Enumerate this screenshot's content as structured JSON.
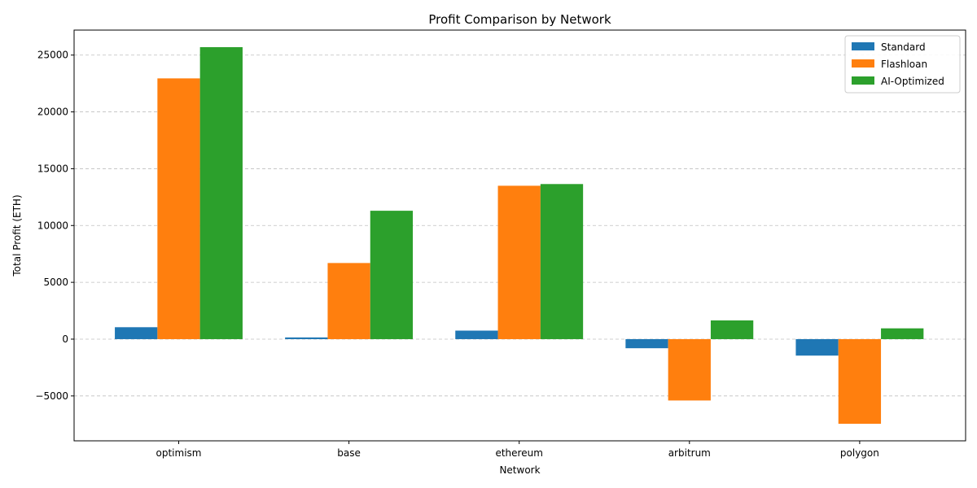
{
  "chart_data": {
    "type": "bar",
    "title": "Profit Comparison by Network",
    "xlabel": "Network",
    "ylabel": "Total Profit (ETH)",
    "categories": [
      "optimism",
      "base",
      "ethereum",
      "arbitrum",
      "polygon"
    ],
    "series": [
      {
        "name": "Standard",
        "color": "#1f77b4",
        "values": [
          1050,
          150,
          750,
          -800,
          -1450
        ]
      },
      {
        "name": "Flashloan",
        "color": "#ff7f0e",
        "values": [
          22950,
          6700,
          13500,
          -5400,
          -7450
        ]
      },
      {
        "name": "AI-Optimized",
        "color": "#2ca02c",
        "values": [
          25700,
          11300,
          13650,
          1650,
          950
        ]
      }
    ],
    "ylim": [
      -8950,
      27200
    ],
    "yticks": [
      -5000,
      0,
      5000,
      10000,
      15000,
      20000,
      25000
    ],
    "ytick_labels": [
      "−5000",
      "0",
      "5000",
      "10000",
      "15000",
      "20000",
      "25000"
    ],
    "grid": "y-dashed",
    "legend_position": "top-right"
  }
}
